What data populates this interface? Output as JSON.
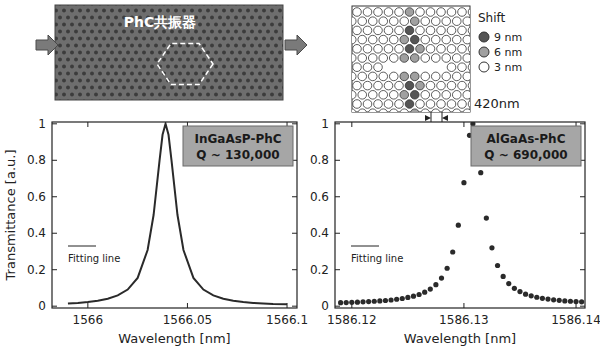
{
  "diagram": {
    "sem": {
      "label": "PhC共振器"
    },
    "schematic": {
      "legend_title": "Shift",
      "legend": [
        {
          "label": "9 nm",
          "color": "#555555"
        },
        {
          "label": "6 nm",
          "color": "#a0a0a0"
        },
        {
          "label": "3 nm",
          "color": "#ffffff"
        }
      ],
      "period_label": "420nm"
    }
  },
  "chart_data": [
    {
      "type": "line",
      "xlabel": "Wavelength [nm]",
      "ylabel": "Transmittance [a.u.]",
      "annotations": [
        "InGaAsP-PhC",
        "Q ~ 130,000"
      ],
      "fit_label": "Fitting line",
      "xlim": [
        1565.982,
        1566.105
      ],
      "ylim": [
        -0.01,
        1.01
      ],
      "xticks": [
        1566,
        1566.05,
        1566.1
      ],
      "yticks": [
        0,
        0.2,
        0.4,
        0.6,
        0.8,
        1
      ],
      "color": "#2a2a2a",
      "line_style": "solid",
      "x": [
        1565.99,
        1565.995,
        1566.0,
        1566.005,
        1566.01,
        1566.015,
        1566.02,
        1566.025,
        1566.03,
        1566.033,
        1566.036,
        1566.0375,
        1566.039,
        1566.0405,
        1566.042,
        1566.045,
        1566.048,
        1566.053,
        1566.058,
        1566.063,
        1566.068,
        1566.073,
        1566.078,
        1566.083,
        1566.088,
        1566.093,
        1566.1
      ],
      "values": [
        0.015,
        0.018,
        0.023,
        0.03,
        0.041,
        0.059,
        0.091,
        0.155,
        0.308,
        0.5,
        0.8,
        0.94,
        1,
        0.94,
        0.8,
        0.5,
        0.308,
        0.155,
        0.091,
        0.059,
        0.041,
        0.03,
        0.023,
        0.018,
        0.015,
        0.012,
        0.01
      ]
    },
    {
      "type": "scatter",
      "xlabel": "Wavelength [nm]",
      "annotations": [
        "AlGaAs-PhC",
        "Q ~ 690,000"
      ],
      "fit_label": "Fitting line",
      "xlim": [
        1586.1185,
        1586.1408
      ],
      "ylim": [
        -0.01,
        1.01
      ],
      "xticks": [
        1586.12,
        1586.13,
        1586.14
      ],
      "yticks": [
        0,
        0.2,
        0.4,
        0.6,
        0.8,
        1
      ],
      "color": "#2a2a2a",
      "marker": "circle",
      "x": [
        1586.119,
        1586.1195,
        1586.12,
        1586.1205,
        1586.121,
        1586.1215,
        1586.122,
        1586.1225,
        1586.123,
        1586.1235,
        1586.124,
        1586.1245,
        1586.125,
        1586.1255,
        1586.126,
        1586.1265,
        1586.127,
        1586.1275,
        1586.128,
        1586.1285,
        1586.129,
        1586.1295,
        1586.13,
        1586.1305,
        1586.1308,
        1586.131,
        1586.1315,
        1586.132,
        1586.1325,
        1586.133,
        1586.1335,
        1586.134,
        1586.1345,
        1586.135,
        1586.1355,
        1586.136,
        1586.1365,
        1586.137,
        1586.1375,
        1586.138,
        1586.1385,
        1586.139,
        1586.1395,
        1586.14,
        1586.1405
      ],
      "values": [
        0.019,
        0.02,
        0.021,
        0.022,
        0.024,
        0.025,
        0.027,
        0.029,
        0.031,
        0.034,
        0.038,
        0.042,
        0.048,
        0.055,
        0.064,
        0.077,
        0.094,
        0.118,
        0.154,
        0.208,
        0.297,
        0.444,
        0.677,
        0.937,
        1,
        0.971,
        0.732,
        0.483,
        0.32,
        0.223,
        0.163,
        0.124,
        0.098,
        0.08,
        0.066,
        0.057,
        0.049,
        0.043,
        0.039,
        0.035,
        0.032,
        0.029,
        0.027,
        0.025,
        0.024
      ]
    }
  ]
}
